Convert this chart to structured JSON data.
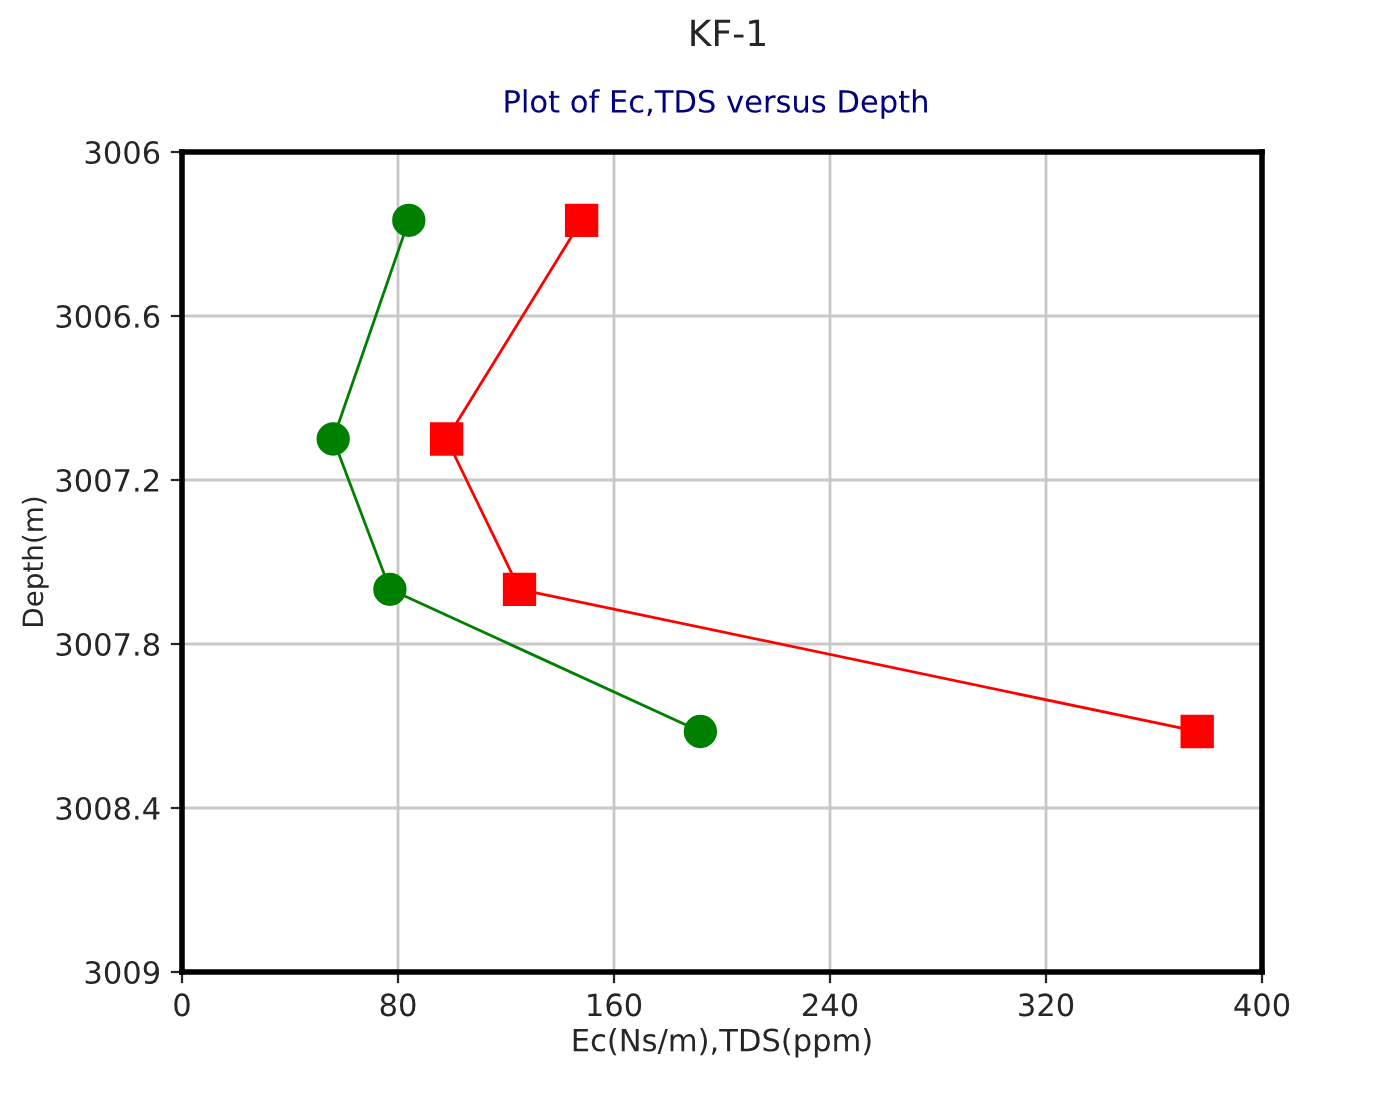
{
  "chart_data": {
    "type": "line",
    "title": "KF-1",
    "subtitle": "Plot of Ec,TDS versus Depth",
    "xlabel": "Ec(Ns/m),TDS(ppm)",
    "ylabel": "Depth(m)",
    "series": [
      {
        "color": "#008000",
        "marker": "circle",
        "x": [
          84,
          56,
          77,
          192
        ],
        "values": [
          3006.25,
          3007.05,
          3007.6,
          3008.12
        ]
      },
      {
        "color": "#ff0000",
        "marker": "square",
        "x": [
          148,
          98,
          125,
          376
        ],
        "values": [
          3006.25,
          3007.05,
          3007.6,
          3008.12
        ]
      }
    ],
    "xlim": [
      0,
      400
    ],
    "xticks": [
      0,
      80,
      160,
      240,
      320,
      400
    ],
    "ylim": [
      3009,
      3006
    ],
    "yticks": [
      3006,
      3006.6,
      3007.2,
      3007.8,
      3008.4,
      3009
    ],
    "grid": true,
    "line_style": "solid",
    "legend": false
  }
}
